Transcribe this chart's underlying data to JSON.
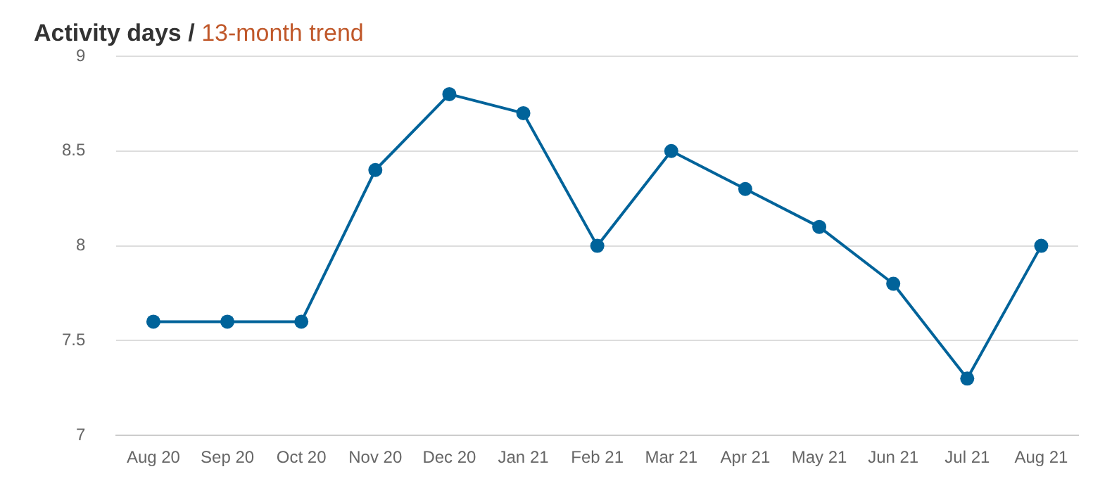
{
  "chart_data": {
    "type": "line",
    "title": "Activity days /",
    "subtitle": "13-month trend",
    "categories": [
      "Aug 20",
      "Sep 20",
      "Oct 20",
      "Nov 20",
      "Dec 20",
      "Jan 21",
      "Feb 21",
      "Mar 21",
      "Apr 21",
      "May 21",
      "Jun 21",
      "Jul 21",
      "Aug 21"
    ],
    "series": [
      {
        "color": "#00639a",
        "values": [
          7.6,
          7.6,
          7.6,
          8.4,
          8.8,
          8.7,
          8.0,
          8.5,
          8.3,
          8.1,
          7.8,
          7.3,
          8.0
        ]
      }
    ],
    "ylim": [
      7,
      9
    ],
    "yticks": [
      7,
      7.5,
      8,
      8.5,
      9
    ],
    "grid": "y",
    "legend": false,
    "marker": "circle",
    "line_style": "solid"
  }
}
